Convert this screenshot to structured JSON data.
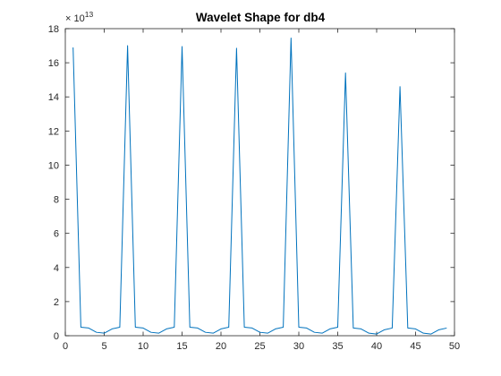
{
  "chart_data": {
    "type": "line",
    "title": "Wavelet Shape for db4",
    "xlabel": "",
    "ylabel": "",
    "xlim": [
      0,
      50
    ],
    "ylim": [
      0,
      18
    ],
    "y_exponent_label": "× 10",
    "y_exponent_power": "13",
    "x_ticks": [
      0,
      5,
      10,
      15,
      20,
      25,
      30,
      35,
      40,
      45,
      50
    ],
    "x_tick_labels": [
      "0",
      "5",
      "10",
      "15",
      "20",
      "25",
      "30",
      "35",
      "40",
      "45",
      "50"
    ],
    "y_ticks": [
      0,
      2,
      4,
      6,
      8,
      10,
      12,
      14,
      16,
      18
    ],
    "y_tick_labels": [
      "0",
      "2",
      "4",
      "6",
      "8",
      "10",
      "12",
      "14",
      "16",
      "18"
    ],
    "grid": false,
    "line_color": "#0072BD",
    "x": [
      1,
      2,
      3,
      4,
      5,
      6,
      7,
      8,
      9,
      10,
      11,
      12,
      13,
      14,
      15,
      16,
      17,
      18,
      19,
      20,
      21,
      22,
      23,
      24,
      25,
      26,
      27,
      28,
      29,
      30,
      31,
      32,
      33,
      34,
      35,
      36,
      37,
      38,
      39,
      40,
      41,
      42,
      43,
      44,
      45,
      46,
      47,
      48,
      49
    ],
    "y": [
      16.9,
      0.5,
      0.45,
      0.2,
      0.15,
      0.4,
      0.5,
      17.0,
      0.5,
      0.45,
      0.2,
      0.15,
      0.4,
      0.5,
      16.95,
      0.5,
      0.45,
      0.2,
      0.15,
      0.4,
      0.5,
      16.85,
      0.5,
      0.45,
      0.2,
      0.15,
      0.4,
      0.5,
      17.45,
      0.5,
      0.45,
      0.2,
      0.15,
      0.4,
      0.5,
      15.4,
      0.45,
      0.4,
      0.15,
      0.1,
      0.35,
      0.45,
      14.6,
      0.45,
      0.4,
      0.15,
      0.1,
      0.35,
      0.45
    ]
  }
}
